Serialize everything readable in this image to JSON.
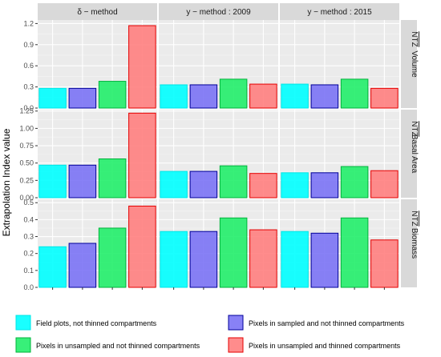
{
  "chart_data": {
    "type": "bar",
    "ylabel": "Extrapolation Index value",
    "columns": [
      "δ − method",
      "y − method : 2009",
      "y − method : 2015"
    ],
    "categories": [
      "Field plots, not thinned compartments",
      "Pixels in sampled and not thinned compartments",
      "Pixels in unsampled and not thinned compartments",
      "Pixels in unsampled and thinned compartments"
    ],
    "colors": [
      "#00ffff",
      "#7b73f5",
      "#22ee6a",
      "#ff8080"
    ],
    "border_colors": [
      "#00e6e6",
      "#000099",
      "#00b33c",
      "#e60000"
    ],
    "rows": [
      {
        "label": "Volume",
        "label_overline": "NTZ",
        "ylim": [
          0,
          1.25
        ],
        "ticks": [
          0.0,
          0.3,
          0.6,
          0.9,
          1.2
        ],
        "tick_labels": [
          "0.0",
          "0.3",
          "0.6",
          "0.9",
          "1.2"
        ],
        "values": [
          [
            0.28,
            0.28,
            0.38,
            1.17
          ],
          [
            0.33,
            0.33,
            0.41,
            0.34
          ],
          [
            0.34,
            0.33,
            0.41,
            0.28
          ]
        ]
      },
      {
        "label": "Basal Area",
        "label_overline": "NTZ",
        "ylim": [
          0,
          1.27
        ],
        "ticks": [
          0.0,
          0.25,
          0.5,
          0.75,
          1.0,
          1.25
        ],
        "tick_labels": [
          "0.00",
          "0.25",
          "0.50",
          "0.75",
          "1.00",
          "1.25"
        ],
        "values": [
          [
            0.47,
            0.47,
            0.56,
            1.22
          ],
          [
            0.38,
            0.38,
            0.46,
            0.35
          ],
          [
            0.36,
            0.36,
            0.45,
            0.39
          ]
        ]
      },
      {
        "label": "Biomass",
        "label_overline": "NTZ",
        "ylim": [
          0,
          0.52
        ],
        "ticks": [
          0.0,
          0.1,
          0.2,
          0.3,
          0.4,
          0.5
        ],
        "tick_labels": [
          "0.0",
          "0.1",
          "0.2",
          "0.3",
          "0.4",
          "0.5"
        ],
        "values": [
          [
            0.24,
            0.26,
            0.35,
            0.48
          ],
          [
            0.33,
            0.33,
            0.41,
            0.34
          ],
          [
            0.33,
            0.32,
            0.41,
            0.28
          ]
        ]
      }
    ],
    "grid": true,
    "legend": "bottom"
  }
}
